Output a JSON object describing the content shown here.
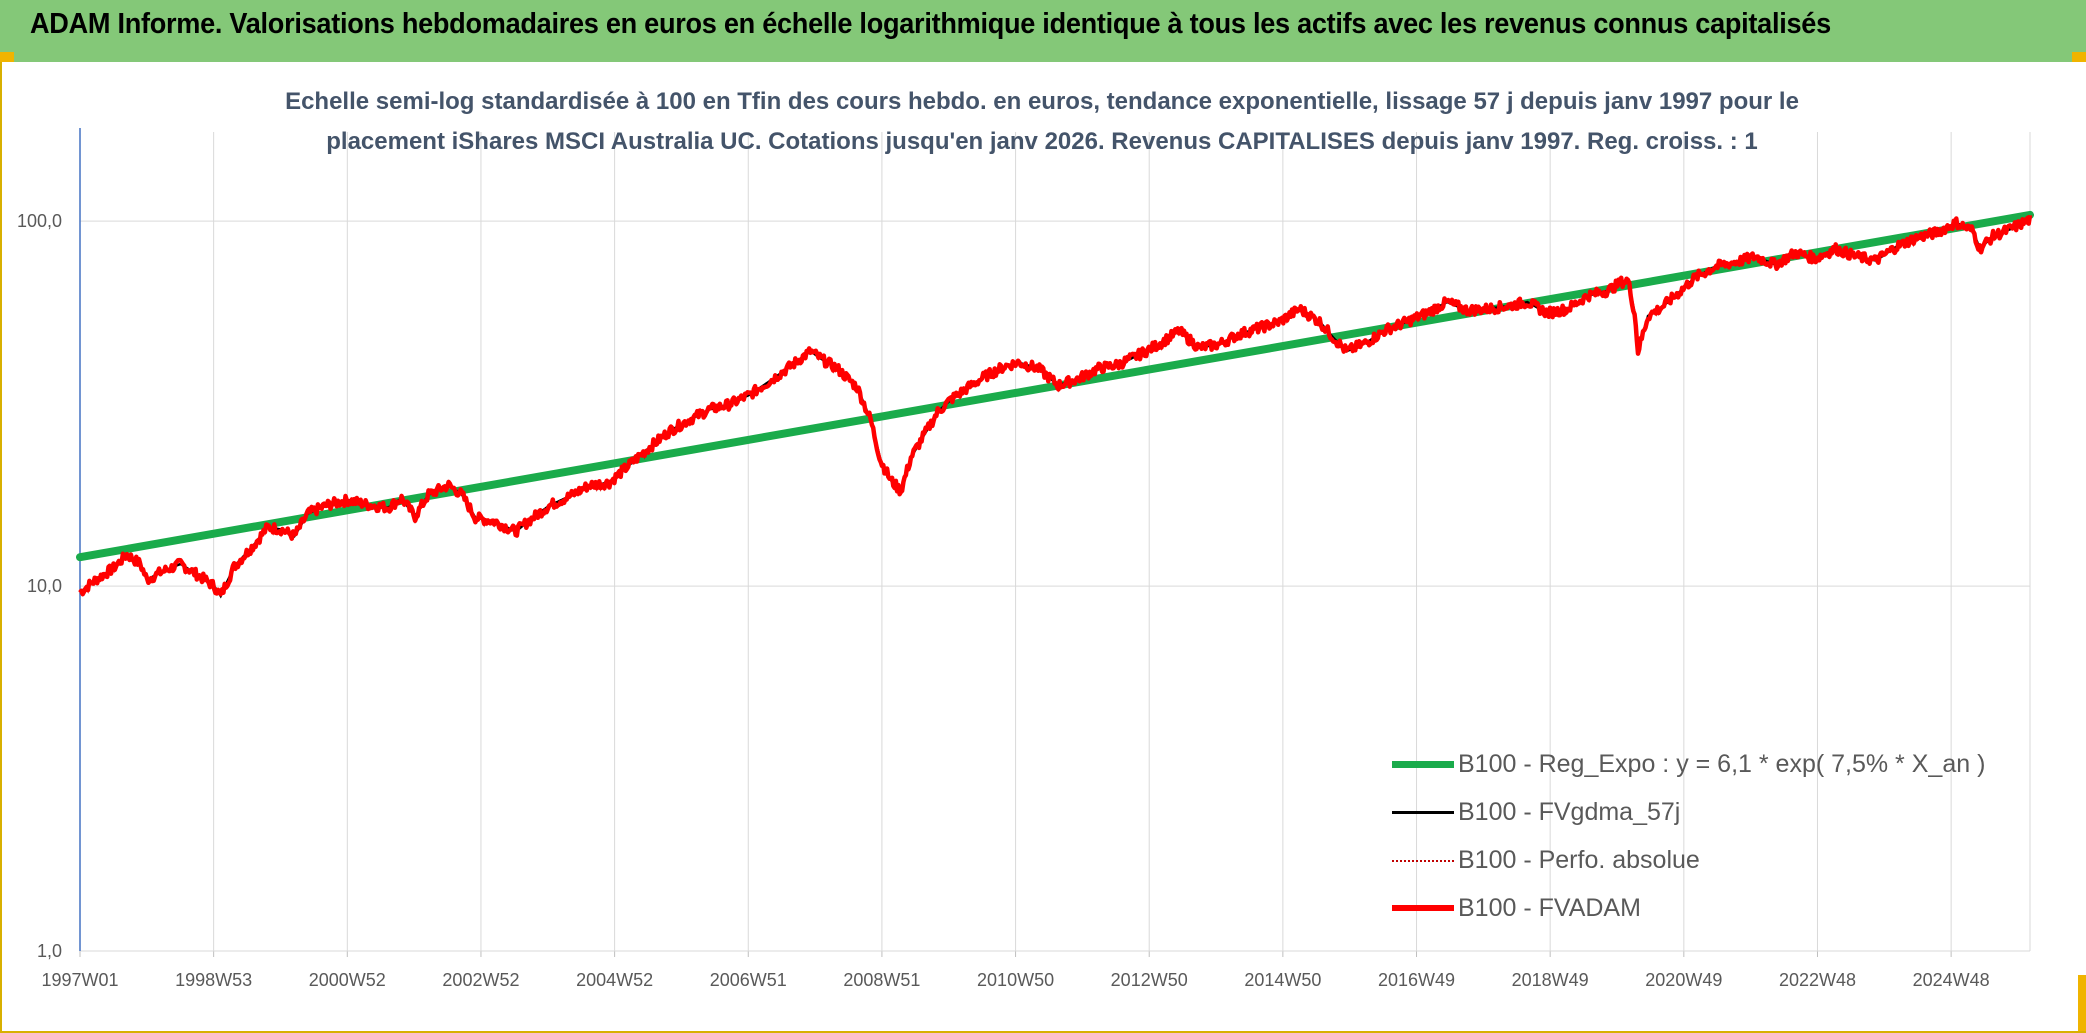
{
  "banner": {
    "title": "ADAM Informe. Valorisations hebdomadaires en euros en échelle logarithmique identique à tous les actifs avec les revenus connus capitalisés"
  },
  "colors": {
    "banner": "#84c878",
    "regression": "#1aab4b",
    "smoothed": "#000000",
    "absolute": "#c00000",
    "fvadam": "#ff0000",
    "grid": "#d9d9d9",
    "axis": "#4472c4"
  },
  "chart_data": {
    "type": "line",
    "title_line1": "Echelle semi-log standardisée à 100 en Tfin des cours hebdo. en euros, tendance exponentielle, lissage 57 j depuis janv 1997 pour le",
    "title_line2": "placement iShares MSCI Australia UC. Cotations jusqu'en janv 2026. Revenus CAPITALISES depuis janv 1997. Reg. croiss. : 1",
    "y_scale": "log",
    "ylim": [
      1,
      180
    ],
    "y_ticks": [
      "1,0",
      "10,0",
      "100,0"
    ],
    "x_range": [
      1997.0,
      2026.1
    ],
    "x_ticks": [
      "1997W01",
      "1998W53",
      "2000W52",
      "2002W52",
      "2004W52",
      "2006W51",
      "2008W51",
      "2010W50",
      "2012W50",
      "2014W50",
      "2016W49",
      "2018W49",
      "2020W49",
      "2022W48",
      "2024W48"
    ],
    "legend_position": "bottom-right",
    "grid": true,
    "regression": {
      "start": [
        1997.0,
        12.0
      ],
      "end": [
        2026.1,
        104.0
      ]
    },
    "fvadam_points": [
      [
        1997.0,
        9.6
      ],
      [
        1997.2,
        10.3
      ],
      [
        1997.5,
        11.2
      ],
      [
        1997.7,
        12.2
      ],
      [
        1997.9,
        11.5
      ],
      [
        1998.0,
        10.4
      ],
      [
        1998.2,
        10.9
      ],
      [
        1998.5,
        11.5
      ],
      [
        1998.8,
        10.6
      ],
      [
        1999.0,
        10.0
      ],
      [
        1999.1,
        9.4
      ],
      [
        1999.3,
        11.3
      ],
      [
        1999.6,
        13.0
      ],
      [
        1999.8,
        14.5
      ],
      [
        2000.0,
        14.3
      ],
      [
        2000.2,
        13.7
      ],
      [
        2000.4,
        15.8
      ],
      [
        2000.7,
        16.7
      ],
      [
        2001.0,
        17.2
      ],
      [
        2001.3,
        16.7
      ],
      [
        2001.6,
        16.4
      ],
      [
        2001.8,
        17.4
      ],
      [
        2002.0,
        15.5
      ],
      [
        2002.2,
        17.8
      ],
      [
        2002.5,
        18.9
      ],
      [
        2002.7,
        17.8
      ],
      [
        2002.9,
        15.4
      ],
      [
        2003.2,
        15.0
      ],
      [
        2003.5,
        14.1
      ],
      [
        2003.7,
        15.1
      ],
      [
        2004.0,
        16.6
      ],
      [
        2004.3,
        17.6
      ],
      [
        2004.6,
        18.9
      ],
      [
        2004.9,
        19.2
      ],
      [
        2005.2,
        21.5
      ],
      [
        2005.5,
        24.0
      ],
      [
        2005.8,
        26.6
      ],
      [
        2006.1,
        28.6
      ],
      [
        2006.4,
        30.5
      ],
      [
        2006.7,
        31.5
      ],
      [
        2007.0,
        33.5
      ],
      [
        2007.3,
        36.5
      ],
      [
        2007.6,
        40.0
      ],
      [
        2007.9,
        44.0
      ],
      [
        2008.1,
        41.5
      ],
      [
        2008.3,
        39.5
      ],
      [
        2008.6,
        35.0
      ],
      [
        2008.8,
        28.5
      ],
      [
        2008.95,
        22.0
      ],
      [
        2009.1,
        19.5
      ],
      [
        2009.25,
        18.2
      ],
      [
        2009.4,
        22.5
      ],
      [
        2009.6,
        26.0
      ],
      [
        2009.8,
        30.0
      ],
      [
        2010.0,
        32.5
      ],
      [
        2010.3,
        35.5
      ],
      [
        2010.5,
        37.5
      ],
      [
        2010.8,
        40.0
      ],
      [
        2011.0,
        41.0
      ],
      [
        2011.3,
        39.5
      ],
      [
        2011.6,
        35.5
      ],
      [
        2011.9,
        37.0
      ],
      [
        2012.2,
        39.5
      ],
      [
        2012.5,
        40.5
      ],
      [
        2012.8,
        43.0
      ],
      [
        2013.1,
        46.0
      ],
      [
        2013.4,
        50.0
      ],
      [
        2013.7,
        45.0
      ],
      [
        2014.0,
        46.0
      ],
      [
        2014.3,
        49.0
      ],
      [
        2014.6,
        51.0
      ],
      [
        2014.9,
        53.0
      ],
      [
        2015.2,
        57.5
      ],
      [
        2015.5,
        53.0
      ],
      [
        2015.7,
        48.0
      ],
      [
        2015.9,
        44.0
      ],
      [
        2016.2,
        46.5
      ],
      [
        2016.5,
        50.5
      ],
      [
        2016.8,
        53.0
      ],
      [
        2017.1,
        56.0
      ],
      [
        2017.4,
        60.0
      ],
      [
        2017.7,
        57.0
      ],
      [
        2018.0,
        57.5
      ],
      [
        2018.3,
        58.5
      ],
      [
        2018.6,
        60.0
      ],
      [
        2018.9,
        56.0
      ],
      [
        2019.2,
        57.5
      ],
      [
        2019.5,
        62.5
      ],
      [
        2019.8,
        64.5
      ],
      [
        2020.0,
        68.0
      ],
      [
        2020.1,
        69.0
      ],
      [
        2020.2,
        56.0
      ],
      [
        2020.25,
        44.0
      ],
      [
        2020.4,
        55.0
      ],
      [
        2020.6,
        58.0
      ],
      [
        2020.85,
        63.5
      ],
      [
        2021.1,
        70.0
      ],
      [
        2021.4,
        75.0
      ],
      [
        2021.8,
        78.0
      ],
      [
        2022.0,
        80.0
      ],
      [
        2022.3,
        76.0
      ],
      [
        2022.6,
        82.0
      ],
      [
        2022.9,
        79.0
      ],
      [
        2023.2,
        84.0
      ],
      [
        2023.5,
        80.0
      ],
      [
        2023.8,
        78.0
      ],
      [
        2024.1,
        85.0
      ],
      [
        2024.4,
        90.0
      ],
      [
        2024.7,
        93.0
      ],
      [
        2025.0,
        99.0
      ],
      [
        2025.25,
        94.0
      ],
      [
        2025.35,
        84.0
      ],
      [
        2025.55,
        91.0
      ],
      [
        2025.8,
        95.0
      ],
      [
        2026.1,
        101.0
      ]
    ],
    "series": [
      {
        "name": "B100 - Reg_Expo : y = 6,1 * exp( 7,5% *  X_an )"
      },
      {
        "name": "B100 - FVgdma_57j"
      },
      {
        "name": "B100 - Perfo. absolue"
      },
      {
        "name": "B100 - FVADAM"
      }
    ]
  }
}
